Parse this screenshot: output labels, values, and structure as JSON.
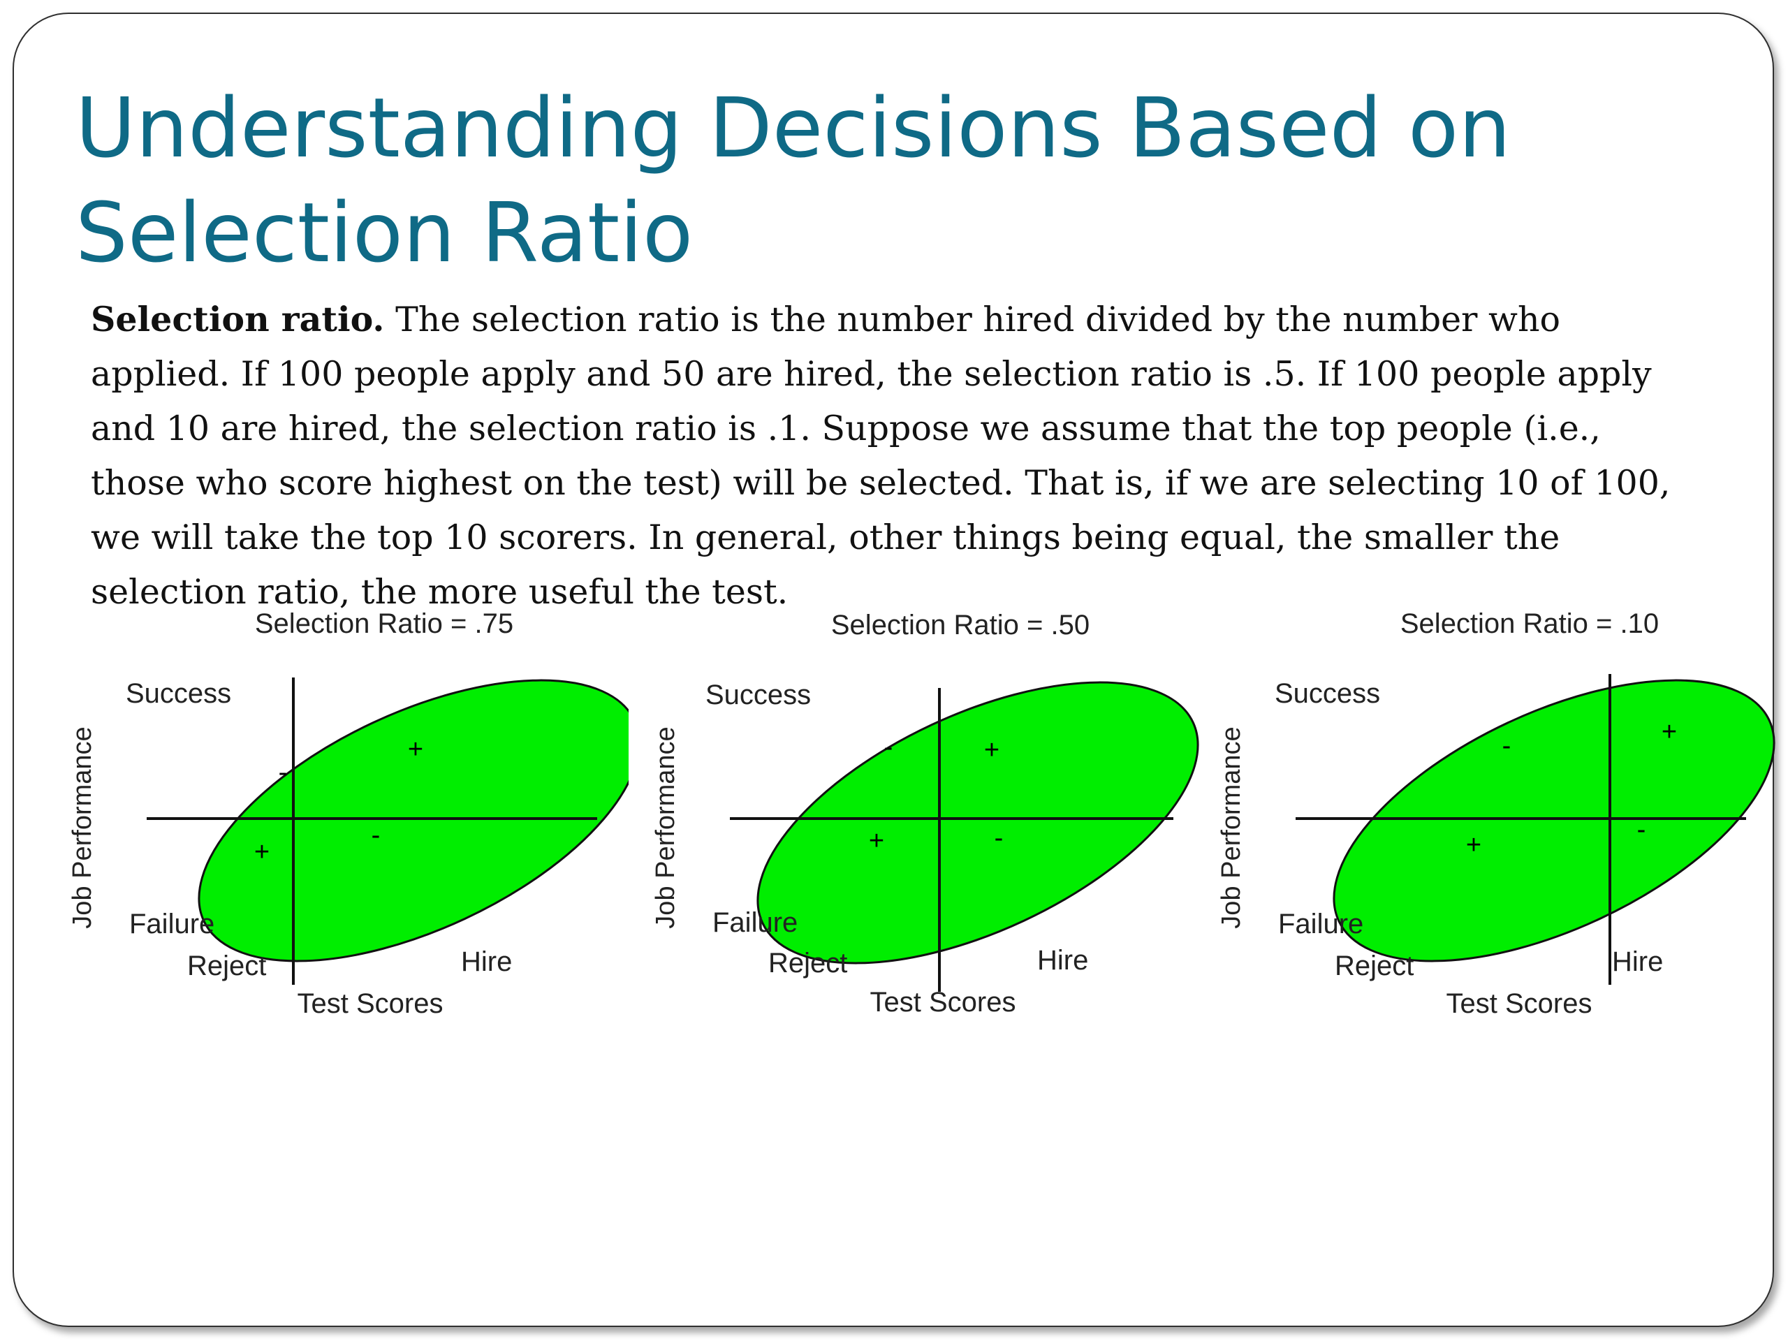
{
  "slide": {
    "title": "Understanding Decisions Based on Selection Ratio",
    "body_lead": "Selection ratio.",
    "body_text": " The selection ratio is the number hired divided by the number who applied. If 100 people apply and 50 are hired, the selection ratio is .5. If 100 people apply and 10 are hired, the selection ratio is .1. Suppose we assume that the top people (i.e., those who score highest on the test) will be selected. That is, if we are selecting 10 of 100, we will take the top 10 scorers. In general, other things being equal, the smaller the selection ratio, the more useful the test."
  },
  "diagrams": [
    {
      "title": "Selection Ratio = .75",
      "y_label": "Job Performance",
      "x_label": "Test Scores",
      "success": "Success",
      "failure": "Failure",
      "reject": "Reject",
      "hire": "Hire",
      "selection_ratio": 0.75
    },
    {
      "title": "Selection Ratio = .50",
      "y_label": "Job Performance",
      "x_label": "Test Scores",
      "success": "Success",
      "failure": "Failure",
      "reject": "Reject",
      "hire": "Hire",
      "selection_ratio": 0.5
    },
    {
      "title": "Selection Ratio = .10",
      "y_label": "Job Performance",
      "x_label": "Test Scores",
      "success": "Success",
      "failure": "Failure",
      "reject": "Reject",
      "hire": "Hire",
      "selection_ratio": 0.1
    }
  ],
  "colors": {
    "title": "#0f6a86",
    "ellipse_fill": "#00ee00"
  }
}
